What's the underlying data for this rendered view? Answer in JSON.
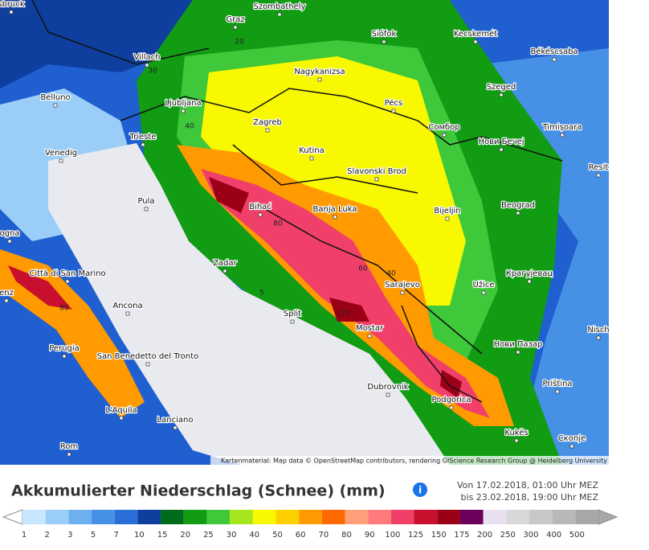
{
  "map": {
    "labels": [
      "sbruck",
      "Szombathely",
      "Graz",
      "Villach",
      "Nagykanizsa",
      "Siófok",
      "Kecskemét",
      "Békéscsaba",
      "Belluno",
      "Ljubljana",
      "Pécs",
      "Szeged",
      "Zagreb",
      "Сомбор",
      "Timișoara",
      "Trieste",
      "Kutina",
      "Нови Бечеј",
      "Venedig",
      "Slavonski Brod",
      "Resit",
      "Pula",
      "Bihać",
      "Banja Luka",
      "Bijeljin",
      "Beograd",
      "ogna",
      "Città di San Marino",
      "Zadar",
      "Крагујевац",
      "Sarajevo",
      "Užice",
      "enz",
      "Ancona",
      "Split",
      "Mostar",
      "Nisch",
      "Perugia",
      "San Benedetto del Tronto",
      "Нови Пазар",
      "Priština",
      "Dubrovnik",
      "Podgorica",
      "L'Aquila",
      "Lanciano",
      "Kukës",
      "Скопје",
      "Rom"
    ],
    "contour_labels": [
      "20",
      "30",
      "40",
      "80",
      "60",
      "40",
      "5",
      "175",
      "80"
    ],
    "attribution": "Kartenmaterial: Map data © OpenStreetMap contributors, rendering GIScience Research Group @ Heidelberg University"
  },
  "title": "Akkumulierter Niederschlag (Schnee) (mm)",
  "date_from": "Von 17.02.2018, 01:00 Uhr MEZ",
  "date_to": "bis 23.02.2018, 19:00 Uhr MEZ",
  "legend": {
    "values": [
      1,
      2,
      3,
      5,
      7,
      10,
      15,
      20,
      25,
      30,
      40,
      50,
      60,
      70,
      80,
      90,
      100,
      125,
      150,
      175,
      200,
      250,
      300,
      400,
      500
    ],
    "colors": [
      "#c8e6ff",
      "#9acdf8",
      "#6eb0f0",
      "#4690e6",
      "#2a6ed8",
      "#0f3f9e",
      "#006b1a",
      "#119c14",
      "#3fc83a",
      "#a6e61e",
      "#f8f800",
      "#ffd000",
      "#ff9a00",
      "#ff6a00",
      "#ffa07a",
      "#ff7a7a",
      "#f0406a",
      "#c8102e",
      "#9a0016",
      "#6a005a",
      "#e8e0f0",
      "#d8d8d8",
      "#c8c8c8",
      "#b8b8b8",
      "#a8a8a8"
    ]
  }
}
